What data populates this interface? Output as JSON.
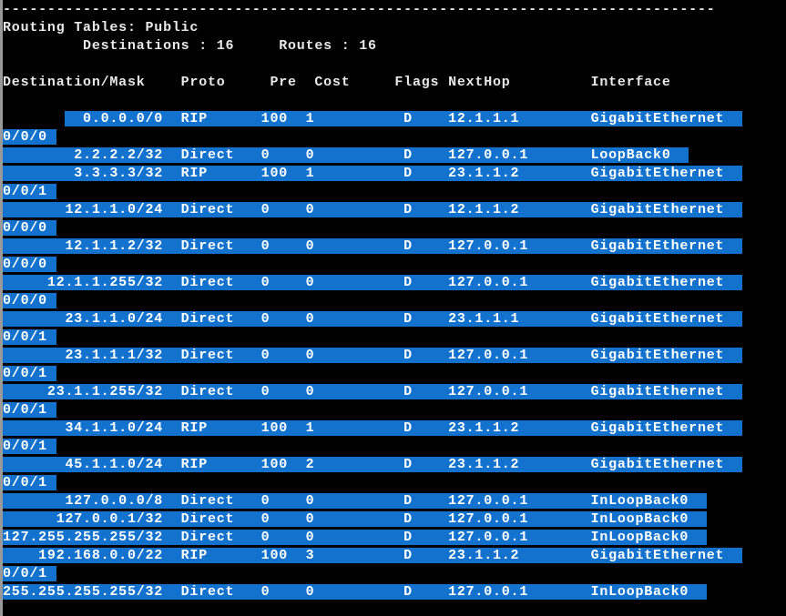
{
  "terminal": {
    "separator_char": "-",
    "separator_length": 80,
    "title": "Routing Tables: Public",
    "summary": {
      "destinations_label": "Destinations",
      "destinations": "16",
      "routes_label": "Routes",
      "routes": "16"
    },
    "columns": [
      "Destination/Mask",
      "Proto",
      "Pre",
      "Cost",
      "Flags",
      "NextHop",
      "Interface"
    ],
    "routes": [
      {
        "dest": "0.0.0.0/0",
        "proto": "RIP",
        "pre": "100",
        "cost": "1",
        "flags": "D",
        "nexthop": "12.1.1.1",
        "interface": "GigabitEthernet",
        "wrap": "0/0/0"
      },
      {
        "dest": "2.2.2.2/32",
        "proto": "Direct",
        "pre": "0",
        "cost": "0",
        "flags": "D",
        "nexthop": "127.0.0.1",
        "interface": "LoopBack0",
        "wrap": ""
      },
      {
        "dest": "3.3.3.3/32",
        "proto": "RIP",
        "pre": "100",
        "cost": "1",
        "flags": "D",
        "nexthop": "23.1.1.2",
        "interface": "GigabitEthernet",
        "wrap": "0/0/1"
      },
      {
        "dest": "12.1.1.0/24",
        "proto": "Direct",
        "pre": "0",
        "cost": "0",
        "flags": "D",
        "nexthop": "12.1.1.2",
        "interface": "GigabitEthernet",
        "wrap": "0/0/0"
      },
      {
        "dest": "12.1.1.2/32",
        "proto": "Direct",
        "pre": "0",
        "cost": "0",
        "flags": "D",
        "nexthop": "127.0.0.1",
        "interface": "GigabitEthernet",
        "wrap": "0/0/0"
      },
      {
        "dest": "12.1.1.255/32",
        "proto": "Direct",
        "pre": "0",
        "cost": "0",
        "flags": "D",
        "nexthop": "127.0.0.1",
        "interface": "GigabitEthernet",
        "wrap": "0/0/0"
      },
      {
        "dest": "23.1.1.0/24",
        "proto": "Direct",
        "pre": "0",
        "cost": "0",
        "flags": "D",
        "nexthop": "23.1.1.1",
        "interface": "GigabitEthernet",
        "wrap": "0/0/1"
      },
      {
        "dest": "23.1.1.1/32",
        "proto": "Direct",
        "pre": "0",
        "cost": "0",
        "flags": "D",
        "nexthop": "127.0.0.1",
        "interface": "GigabitEthernet",
        "wrap": "0/0/1"
      },
      {
        "dest": "23.1.1.255/32",
        "proto": "Direct",
        "pre": "0",
        "cost": "0",
        "flags": "D",
        "nexthop": "127.0.0.1",
        "interface": "GigabitEthernet",
        "wrap": "0/0/1"
      },
      {
        "dest": "34.1.1.0/24",
        "proto": "RIP",
        "pre": "100",
        "cost": "1",
        "flags": "D",
        "nexthop": "23.1.1.2",
        "interface": "GigabitEthernet",
        "wrap": "0/0/1"
      },
      {
        "dest": "45.1.1.0/24",
        "proto": "RIP",
        "pre": "100",
        "cost": "2",
        "flags": "D",
        "nexthop": "23.1.1.2",
        "interface": "GigabitEthernet",
        "wrap": "0/0/1"
      },
      {
        "dest": "127.0.0.0/8",
        "proto": "Direct",
        "pre": "0",
        "cost": "0",
        "flags": "D",
        "nexthop": "127.0.0.1",
        "interface": "InLoopBack0",
        "wrap": ""
      },
      {
        "dest": "127.0.0.1/32",
        "proto": "Direct",
        "pre": "0",
        "cost": "0",
        "flags": "D",
        "nexthop": "127.0.0.1",
        "interface": "InLoopBack0",
        "wrap": ""
      },
      {
        "dest": "127.255.255.255/32",
        "proto": "Direct",
        "pre": "0",
        "cost": "0",
        "flags": "D",
        "nexthop": "127.0.0.1",
        "interface": "InLoopBack0",
        "wrap": ""
      },
      {
        "dest": "192.168.0.0/22",
        "proto": "RIP",
        "pre": "100",
        "cost": "3",
        "flags": "D",
        "nexthop": "23.1.1.2",
        "interface": "GigabitEthernet",
        "wrap": "0/0/1"
      },
      {
        "dest": "255.255.255.255/32",
        "proto": "Direct",
        "pre": "0",
        "cost": "0",
        "flags": "D",
        "nexthop": "127.0.0.1",
        "interface": "InLoopBack0",
        "wrap": ""
      }
    ],
    "colors": {
      "background": "#000000",
      "text": "#e8e8e8",
      "selection_background": "#1272ce",
      "selection_text": "#ffffff",
      "window_border": "#9a9a9a"
    }
  }
}
